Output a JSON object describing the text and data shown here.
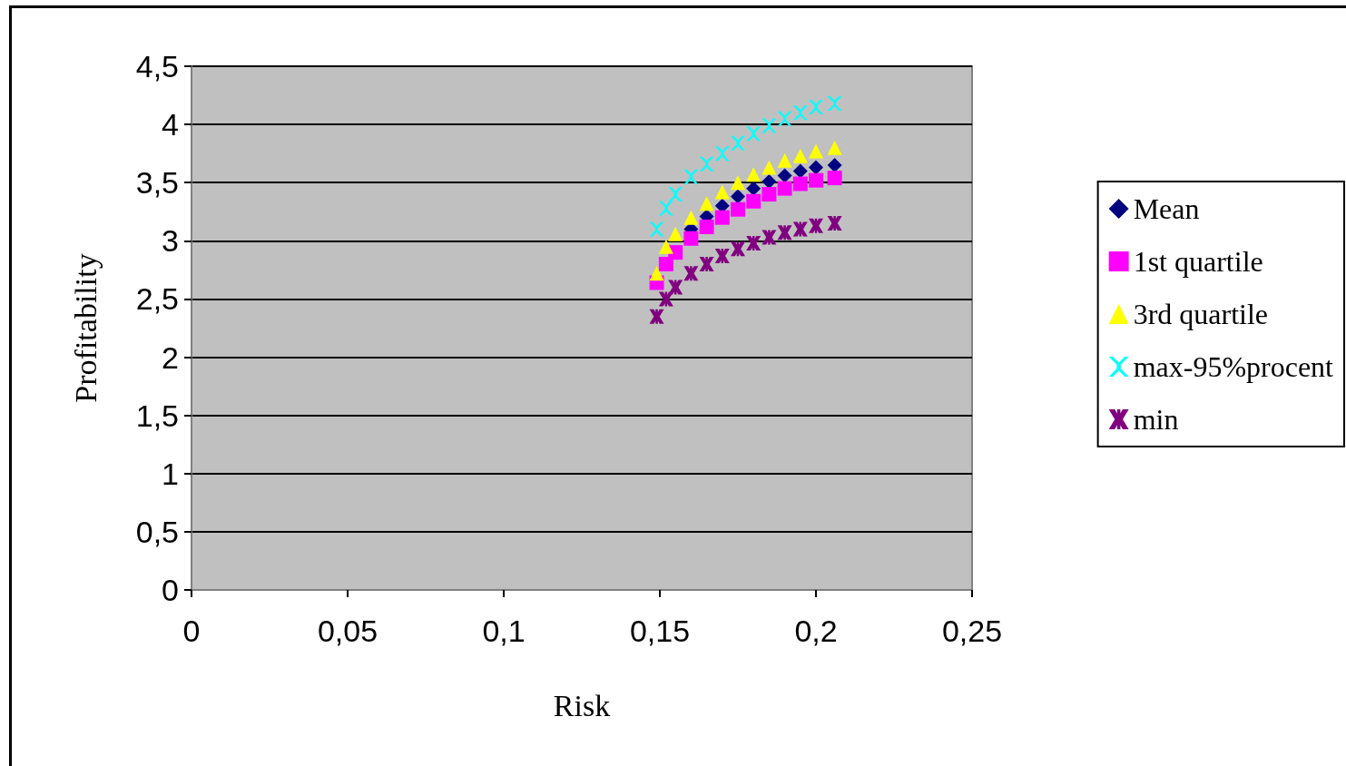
{
  "chart_data": {
    "type": "scatter",
    "xlabel": "Risk",
    "ylabel": "Profitability",
    "xlim": [
      0,
      0.25
    ],
    "xticks": [
      0,
      {
        "value": 0.05,
        "label": "0,05"
      },
      {
        "value": 0.1,
        "label": "0,1"
      },
      {
        "value": 0.15,
        "label": "0,15"
      },
      {
        "value": 0.2,
        "label": "0,2"
      },
      {
        "value": 0.25,
        "label": "0,25"
      }
    ],
    "ylim": [
      0,
      4.5
    ],
    "yticks": [
      0,
      {
        "value": 0.5,
        "label": "0,5"
      },
      1,
      {
        "value": 1.5,
        "label": "1,5"
      },
      2,
      {
        "value": 2.5,
        "label": "2,5"
      },
      3,
      {
        "value": 3.5,
        "label": "3,5"
      },
      4,
      {
        "value": 4.5,
        "label": "4,5"
      }
    ],
    "grid": "y",
    "legend": "right",
    "x": [
      0.149,
      0.152,
      0.155,
      0.16,
      0.165,
      0.17,
      0.175,
      0.18,
      0.185,
      0.19,
      0.195,
      0.2,
      0.206
    ],
    "series": [
      {
        "name": "Mean",
        "color": "#000080",
        "marker": "diamond",
        "values": [
          null,
          null,
          null,
          3.1,
          3.21,
          3.3,
          3.38,
          3.45,
          3.51,
          3.56,
          3.6,
          3.63,
          3.65
        ]
      },
      {
        "name": "1st quartile",
        "color": "#ff00ff",
        "marker": "square",
        "values": [
          2.64,
          2.8,
          2.9,
          3.02,
          3.12,
          3.2,
          3.27,
          3.34,
          3.4,
          3.45,
          3.49,
          3.52,
          3.54
        ]
      },
      {
        "name": "3rd quartile",
        "color": "#ffff00",
        "marker": "triangle",
        "values": [
          2.72,
          2.95,
          3.06,
          3.2,
          3.32,
          3.42,
          3.5,
          3.57,
          3.63,
          3.69,
          3.73,
          3.77,
          3.8
        ]
      },
      {
        "name": "max-95%procent",
        "color": "#00ffff",
        "marker": "cross",
        "values": [
          3.1,
          3.28,
          3.4,
          3.55,
          3.66,
          3.75,
          3.84,
          3.92,
          3.99,
          4.05,
          4.1,
          4.15,
          4.18
        ]
      },
      {
        "name": "min",
        "color": "#800080",
        "marker": "star",
        "values": [
          2.35,
          2.5,
          2.6,
          2.72,
          2.8,
          2.87,
          2.93,
          2.98,
          3.03,
          3.07,
          3.1,
          3.13,
          3.15
        ]
      }
    ]
  }
}
